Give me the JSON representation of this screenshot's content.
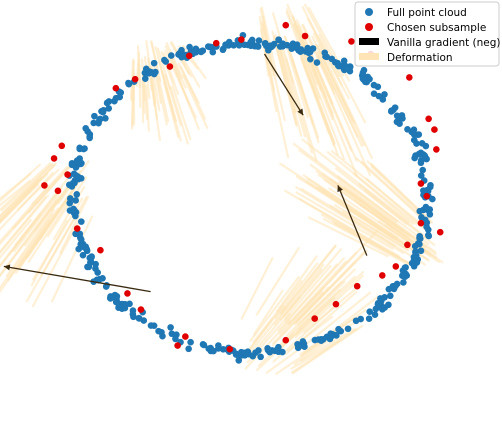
{
  "chart_data": {
    "type": "scatter",
    "axes_visible": false,
    "xlim": [
      -1.3,
      1.3
    ],
    "ylim": [
      -1.3,
      1.1
    ],
    "legend": {
      "placement": "top-right",
      "entries": [
        {
          "label": "Full point cloud",
          "kind": "marker",
          "color": "#1f77b4"
        },
        {
          "label": "Chosen subsample",
          "kind": "marker",
          "color": "#e00000"
        },
        {
          "label": "Vanilla gradient (neg)",
          "kind": "patch",
          "color": "#000000"
        },
        {
          "label": "Deformation",
          "kind": "patch",
          "color": "#ffe4b5"
        }
      ]
    },
    "ring": {
      "center": [
        0.0,
        0.0
      ],
      "rx": 0.92,
      "ry": 0.86,
      "count": 420,
      "noise": 0.08
    },
    "series": [
      {
        "name": "Chosen subsample",
        "color": "#e00000",
        "points": [
          [
            0.18,
            0.96
          ],
          [
            0.28,
            0.9
          ],
          [
            0.52,
            0.87
          ],
          [
            0.62,
            0.8
          ],
          [
            0.82,
            0.67
          ],
          [
            0.92,
            0.44
          ],
          [
            0.95,
            0.38
          ],
          [
            0.96,
            0.27
          ],
          [
            0.88,
            0.08
          ],
          [
            0.91,
            0.01
          ],
          [
            0.88,
            -0.14
          ],
          [
            0.98,
            -0.19
          ],
          [
            0.81,
            -0.26
          ],
          [
            0.75,
            -0.38
          ],
          [
            0.68,
            -0.43
          ],
          [
            0.55,
            -0.49
          ],
          [
            0.44,
            -0.59
          ],
          [
            0.33,
            -0.67
          ],
          [
            0.18,
            -0.79
          ],
          [
            -0.11,
            -0.84
          ],
          [
            -0.34,
            -0.77
          ],
          [
            -0.38,
            -0.82
          ],
          [
            -0.57,
            -0.62
          ],
          [
            -0.64,
            -0.53
          ],
          [
            -0.78,
            -0.29
          ],
          [
            -0.9,
            -0.17
          ],
          [
            -1.0,
            0.04
          ],
          [
            -1.07,
            0.07
          ],
          [
            -0.95,
            0.13
          ],
          [
            -1.02,
            0.22
          ],
          [
            -0.98,
            0.29
          ],
          [
            -0.7,
            0.61
          ],
          [
            -0.6,
            0.66
          ],
          [
            -0.42,
            0.73
          ],
          [
            -0.32,
            0.79
          ],
          [
            -0.18,
            0.86
          ],
          [
            -0.05,
            0.88
          ]
        ]
      }
    ],
    "gradient_arrows": [
      {
        "from": [
          0.07,
          0.8
        ],
        "to": [
          0.27,
          0.46
        ]
      },
      {
        "from": [
          0.6,
          -0.32
        ],
        "to": [
          0.45,
          0.07
        ]
      },
      {
        "from": [
          -0.52,
          -0.52
        ],
        "to": [
          -1.28,
          -0.38
        ]
      }
    ],
    "deformation_regions": [
      {
        "start": [
          -0.98,
          0.04
        ],
        "end": [
          -1.28,
          -0.38
        ],
        "spread": 0.28
      },
      {
        "start": [
          0.85,
          -0.24
        ],
        "end": [
          0.35,
          0.14
        ],
        "spread": 0.24
      },
      {
        "start": [
          0.2,
          0.92
        ],
        "end": [
          0.38,
          0.38
        ],
        "spread": 0.26
      },
      {
        "start": [
          0.1,
          -0.8
        ],
        "end": [
          0.4,
          -0.45
        ],
        "spread": 0.3
      },
      {
        "start": [
          -0.48,
          0.74
        ],
        "end": [
          -0.42,
          0.48
        ],
        "spread": 0.22
      }
    ]
  }
}
